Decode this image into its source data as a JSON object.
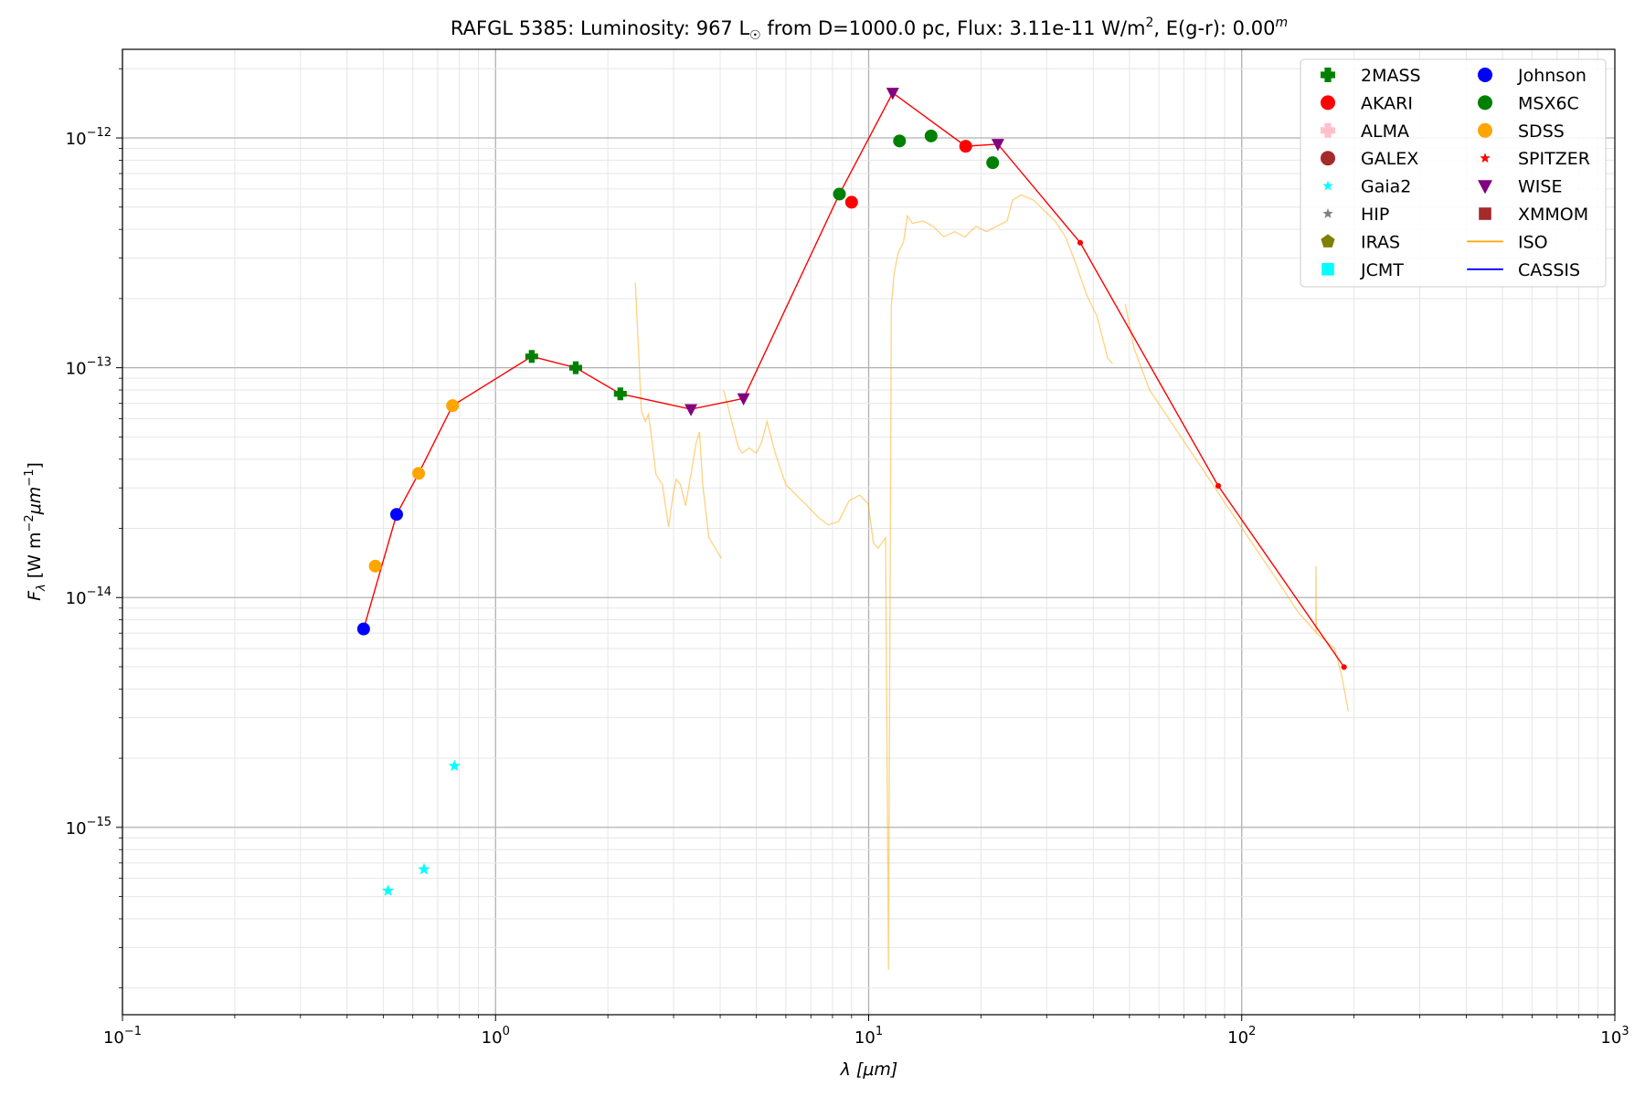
{
  "chart_data": {
    "type": "scatter",
    "title": {
      "object": "RAFGL 5385:",
      "lum_prefix": "Luminosity: 967 L",
      "sun_symbol": "☉",
      "mid": " from D=1000.0 pc, Flux: 3.11e-11 W/m",
      "sq": "2",
      "ext": ", E(g-r): 0.00",
      "mag": "m"
    },
    "xlabel": "λ [μm]",
    "ylabel": {
      "base": "F",
      "sub": "λ",
      "units_a": " [W m",
      "exp_a": "−2",
      "units_b": "μm",
      "exp_b": "−1",
      "units_c": "]"
    },
    "x_scale": "log",
    "y_scale": "log",
    "xlim": [
      0.1,
      1000
    ],
    "ylim": [
      1.53e-16,
      2.43e-12
    ],
    "grid": true,
    "legend_placement": "top-right",
    "x_ticks": [
      {
        "value": 0.1,
        "base": "10",
        "exp": "−1"
      },
      {
        "value": 1,
        "base": "10",
        "exp": "0"
      },
      {
        "value": 10,
        "base": "10",
        "exp": "1"
      },
      {
        "value": 100,
        "base": "10",
        "exp": "2"
      },
      {
        "value": 1000,
        "base": "10",
        "exp": "3"
      }
    ],
    "y_ticks": [
      {
        "value": 1e-15,
        "base": "10",
        "exp": "−15"
      },
      {
        "value": 1e-14,
        "base": "10",
        "exp": "−14"
      },
      {
        "value": 1e-13,
        "base": "10",
        "exp": "−13"
      },
      {
        "value": 1e-12,
        "base": "10",
        "exp": "−12"
      }
    ],
    "sed_line": {
      "color": "#ff0000",
      "points": [
        [
          0.443,
          7.3e-15
        ],
        [
          0.543,
          2.3e-14
        ],
        [
          0.622,
          3.47e-14
        ],
        [
          0.767,
          6.84e-14
        ],
        [
          1.25,
          1.12e-13
        ],
        [
          1.64,
          1e-13
        ],
        [
          2.16,
          7.7e-14
        ],
        [
          3.34,
          6.6e-14
        ],
        [
          4.62,
          7.35e-14
        ],
        [
          8.35,
          5.7e-13
        ],
        [
          11.6,
          1.57e-12
        ],
        [
          18.2,
          9.2e-13
        ],
        [
          22.2,
          9.4e-13
        ],
        [
          36.9,
          3.5e-13
        ],
        [
          86.5,
          3.06e-14
        ],
        [
          188,
          4.98e-15
        ]
      ]
    },
    "series": [
      {
        "name": "2MASS",
        "marker": "plus",
        "color": "#008000",
        "points": [
          [
            1.25,
            1.12e-13
          ],
          [
            1.64,
            1e-13
          ],
          [
            2.16,
            7.7e-14
          ]
        ]
      },
      {
        "name": "AKARI",
        "marker": "circle",
        "color": "#ff0000",
        "points": [
          [
            9.0,
            5.25e-13
          ],
          [
            18.2,
            9.2e-13
          ]
        ]
      },
      {
        "name": "ALMA",
        "marker": "plus",
        "color": "#ffc0cb",
        "points": []
      },
      {
        "name": "GALEX",
        "marker": "circle",
        "color": "#a52a2a",
        "points": []
      },
      {
        "name": "Gaia2",
        "marker": "star",
        "color": "#00ffff",
        "points": [
          [
            0.515,
            5.3e-16
          ],
          [
            0.643,
            6.56e-16
          ],
          [
            0.776,
            1.85e-15
          ]
        ]
      },
      {
        "name": "HIP",
        "marker": "star",
        "color": "#808080",
        "points": []
      },
      {
        "name": "IRAS",
        "marker": "pentagon",
        "color": "#808000",
        "points": []
      },
      {
        "name": "JCMT",
        "marker": "square",
        "color": "#00ffff",
        "points": []
      },
      {
        "name": "Johnson",
        "marker": "circle",
        "color": "#0000ff",
        "points": [
          [
            0.443,
            7.3e-15
          ],
          [
            0.543,
            2.3e-14
          ]
        ]
      },
      {
        "name": "MSX6C",
        "marker": "circle",
        "color": "#008000",
        "points": [
          [
            8.35,
            5.7e-13
          ],
          [
            12.1,
            9.7e-13
          ],
          [
            14.7,
            1.02e-12
          ],
          [
            21.5,
            7.8e-13
          ]
        ]
      },
      {
        "name": "SDSS",
        "marker": "circle",
        "color": "#ffa500",
        "points": [
          [
            0.476,
            1.37e-14
          ],
          [
            0.622,
            3.47e-14
          ],
          [
            0.767,
            6.84e-14
          ]
        ]
      },
      {
        "name": "SPITZER",
        "marker": "star",
        "color": "#ff0000",
        "points": [
          [
            36.9,
            3.5e-13
          ],
          [
            86.5,
            3.06e-14
          ],
          [
            188,
            4.98e-15
          ]
        ]
      },
      {
        "name": "WISE",
        "marker": "triangle-down",
        "color": "#800080",
        "points": [
          [
            3.34,
            6.6e-14
          ],
          [
            4.62,
            7.35e-14
          ],
          [
            11.6,
            1.57e-12
          ],
          [
            22.2,
            9.4e-13
          ]
        ]
      },
      {
        "name": "XMMOM",
        "marker": "square",
        "color": "#a52a2a",
        "points": []
      },
      {
        "name": "ISO",
        "marker": "line",
        "color": "#ffa500",
        "segments": [
          [
            [
              2.37,
              2.35e-13
            ],
            [
              2.46,
              6.49e-14
            ],
            [
              2.52,
              5.84e-14
            ],
            [
              2.57,
              6.28e-14
            ],
            [
              2.63,
              4.72e-14
            ],
            [
              2.69,
              3.44e-14
            ],
            [
              2.8,
              3.1e-14
            ],
            [
              2.91,
              2.03e-14
            ],
            [
              2.99,
              2.79e-14
            ],
            [
              3.05,
              3.27e-14
            ],
            [
              3.13,
              3.1e-14
            ],
            [
              3.23,
              2.51e-14
            ],
            [
              3.34,
              3.44e-14
            ],
            [
              3.45,
              4.72e-14
            ],
            [
              3.52,
              5.25e-14
            ],
            [
              3.59,
              3.1e-14
            ],
            [
              3.73,
              1.82e-14
            ],
            [
              3.88,
              1.64e-14
            ],
            [
              4.03,
              1.48e-14
            ]
          ],
          [
            [
              4.08,
              8.01e-14
            ],
            [
              4.19,
              6.84e-14
            ],
            [
              4.33,
              5.53e-14
            ],
            [
              4.48,
              4.48e-14
            ],
            [
              4.59,
              4.25e-14
            ],
            [
              4.78,
              4.48e-14
            ],
            [
              5.0,
              4.25e-14
            ],
            [
              5.16,
              4.72e-14
            ],
            [
              5.34,
              5.84e-14
            ],
            [
              5.62,
              4.25e-14
            ],
            [
              6.0,
              3.1e-14
            ],
            [
              6.4,
              2.79e-14
            ],
            [
              6.84,
              2.51e-14
            ],
            [
              7.29,
              2.25e-14
            ],
            [
              7.78,
              2.07e-14
            ],
            [
              8.3,
              2.14e-14
            ],
            [
              8.87,
              2.64e-14
            ],
            [
              9.46,
              2.79e-14
            ],
            [
              9.97,
              2.56e-14
            ],
            [
              10.3,
              1.73e-14
            ],
            [
              10.6,
              1.64e-14
            ],
            [
              11.1,
              1.82e-14
            ],
            [
              11.3,
              2.4e-16
            ],
            [
              11.35,
              1.45e-15
            ],
            [
              11.5,
              1.86e-13
            ],
            [
              11.7,
              2.56e-13
            ],
            [
              12.0,
              3.16e-13
            ],
            [
              12.4,
              3.52e-13
            ],
            [
              12.7,
              4.58e-13
            ],
            [
              13.1,
              4.25e-13
            ],
            [
              14.0,
              4.35e-13
            ],
            [
              14.9,
              4.12e-13
            ],
            [
              15.9,
              3.71e-13
            ],
            [
              17.0,
              3.91e-13
            ],
            [
              18.1,
              3.71e-13
            ],
            [
              19.4,
              4.12e-13
            ],
            [
              20.7,
              3.91e-13
            ],
            [
              22.0,
              4.12e-13
            ],
            [
              23.5,
              4.35e-13
            ],
            [
              24.3,
              5.36e-13
            ],
            [
              25.6,
              5.65e-13
            ],
            [
              27.7,
              5.36e-13
            ],
            [
              29.6,
              4.82e-13
            ],
            [
              31.6,
              4.35e-13
            ],
            [
              33.7,
              3.71e-13
            ],
            [
              35.9,
              2.85e-13
            ],
            [
              38.4,
              2.07e-13
            ],
            [
              40.9,
              1.68e-13
            ],
            [
              42.3,
              1.36e-13
            ],
            [
              43.7,
              1.1e-13
            ],
            [
              45.1,
              1.04e-13
            ]
          ],
          [
            [
              48.7,
              1.9e-13
            ],
            [
              51.4,
              1.22e-13
            ],
            [
              56.6,
              8.01e-14
            ],
            [
              64.5,
              5.84e-14
            ],
            [
              73.5,
              4.25e-14
            ],
            [
              83.7,
              3.1e-14
            ],
            [
              95.4,
              2.25e-14
            ],
            [
              109,
              1.64e-14
            ],
            [
              124,
              1.2e-14
            ],
            [
              141,
              8.71e-15
            ],
            [
              158,
              7.06e-15
            ],
            [
              158,
              1.37e-14
            ],
            [
              158.5,
              7e-15
            ],
            [
              177,
              6.03e-15
            ],
            [
              185,
              4.63e-15
            ],
            [
              193,
              3.2e-15
            ]
          ]
        ]
      },
      {
        "name": "CASSIS",
        "marker": "line",
        "color": "#0000ff",
        "segments": []
      }
    ]
  }
}
